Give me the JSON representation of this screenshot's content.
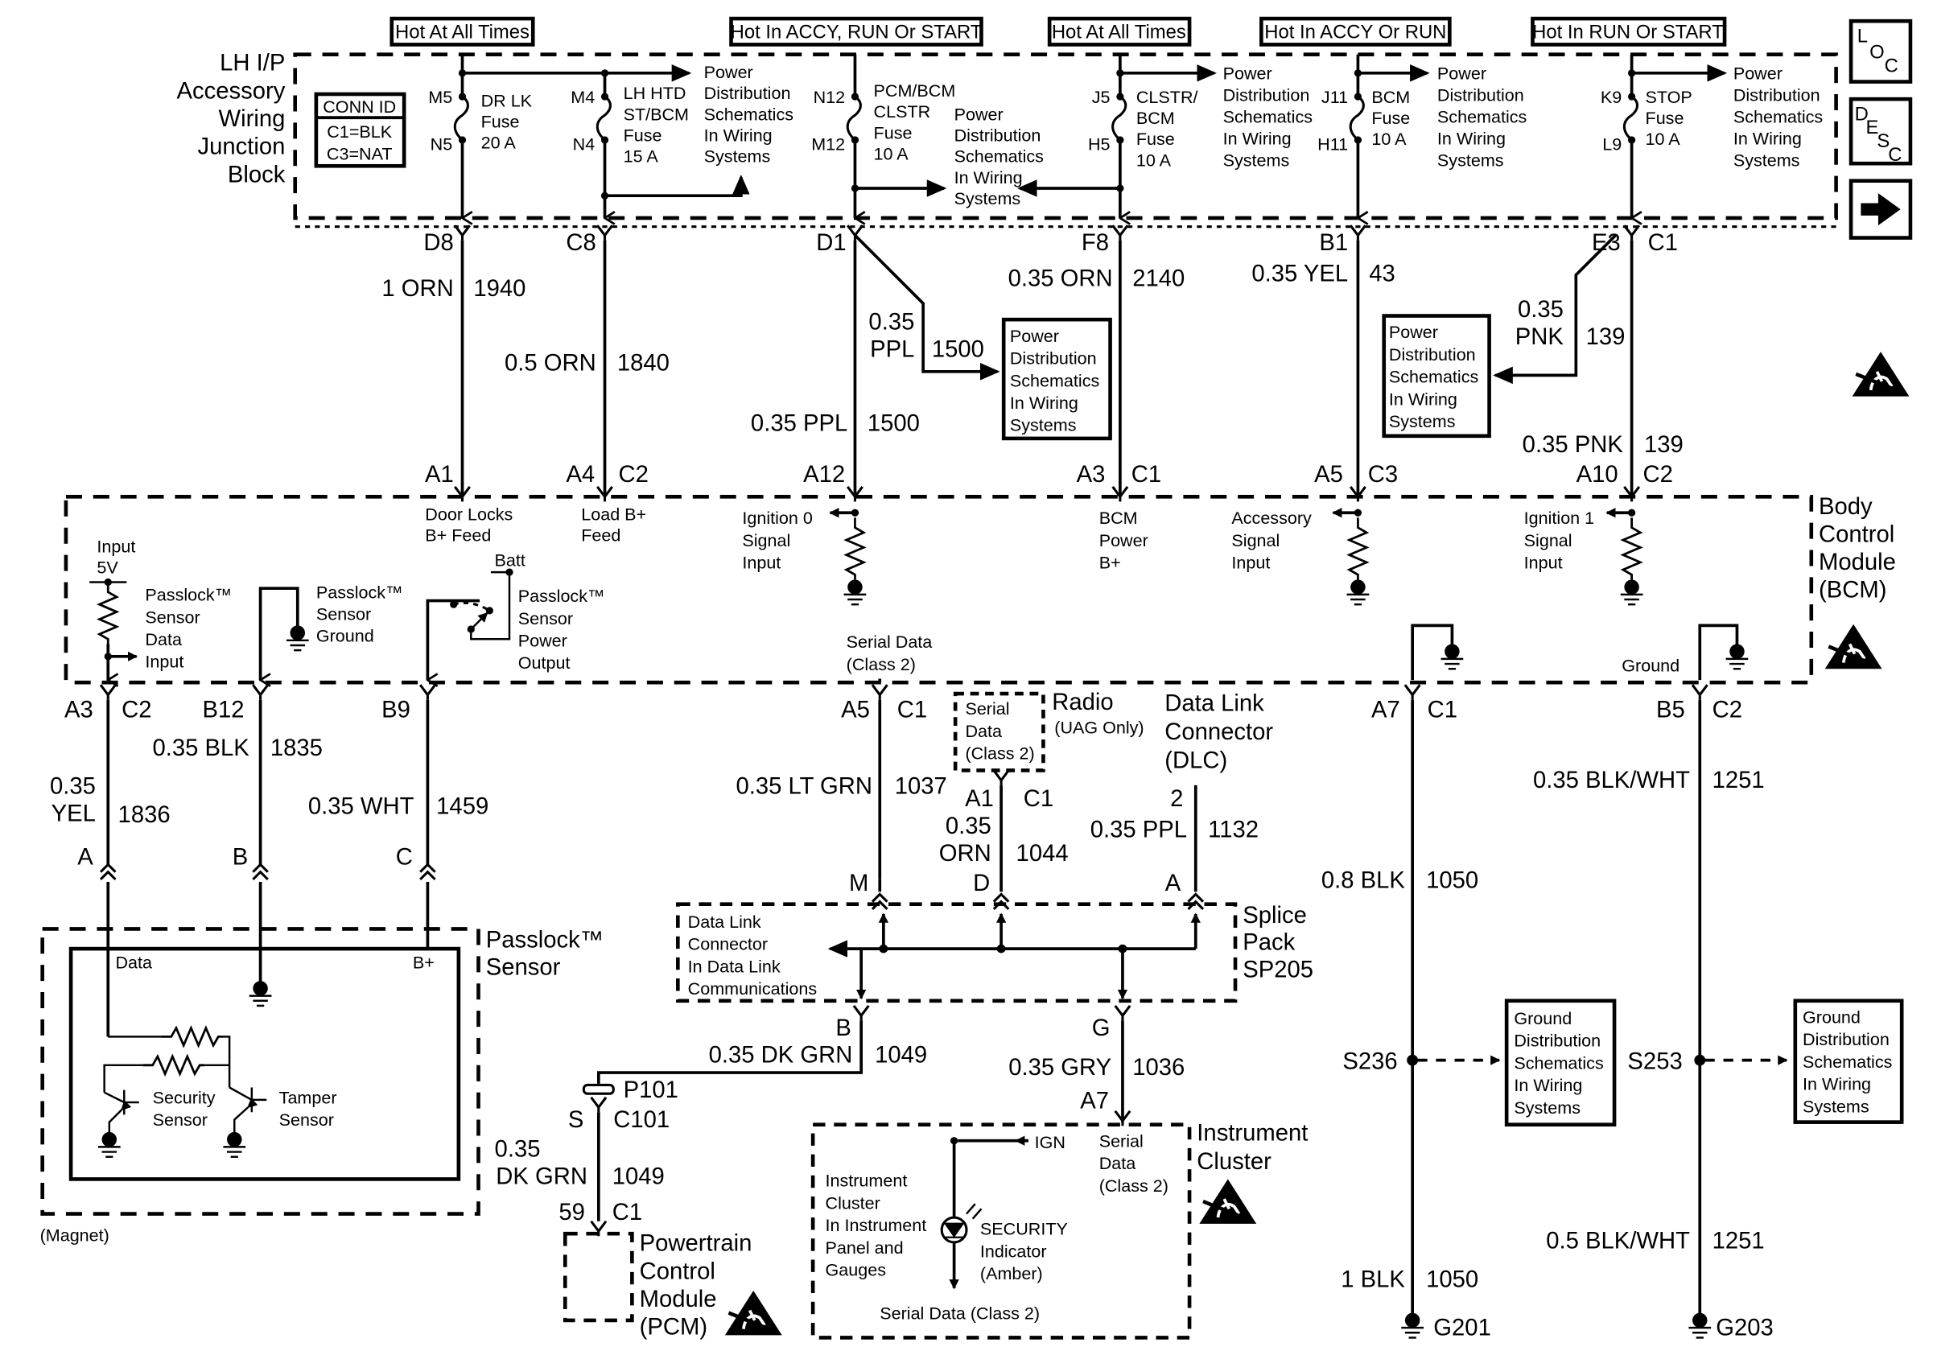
{
  "hot_labels": [
    "Hot At All Times",
    "Hot In ACCY, RUN Or START",
    "Hot At All Times",
    "Hot In ACCY Or RUN",
    "Hot In RUN Or START"
  ],
  "nav_icons": {
    "loc": [
      "L",
      "O",
      "C"
    ],
    "desc": [
      "D",
      "E",
      "S",
      "C"
    ],
    "next": "arrow-right-icon"
  },
  "power_ref": [
    "Power",
    "Distribution",
    "Schematics",
    "In Wiring",
    "Systems"
  ],
  "ground_ref": [
    "Ground",
    "Distribution",
    "Schematics",
    "In Wiring",
    "Systems"
  ],
  "junction_block": {
    "title": [
      "LH I/P",
      "Accessory",
      "Wiring",
      "Junction",
      "Block"
    ],
    "conn_id": {
      "header": "CONN ID",
      "c1": "C1=BLK",
      "c3": "C3=NAT"
    },
    "j11": "J11",
    "fuses": [
      {
        "in": "M5",
        "out": "N5",
        "name": [
          "DR LK",
          "Fuse",
          "20 A"
        ],
        "conn": "D8"
      },
      {
        "in": "M4",
        "out": "N4",
        "name": [
          "LH HTD",
          "ST/BCM",
          "Fuse",
          "15 A"
        ],
        "conn": "C8"
      },
      {
        "in": "N12",
        "out": "M12",
        "name": [
          "PCM/BCM",
          "CLSTR",
          "Fuse",
          "10 A"
        ],
        "conn": "D1"
      },
      {
        "in": "J5",
        "out": "H5",
        "name": [
          "CLSTR/",
          "BCM",
          "Fuse",
          "10 A"
        ],
        "conn": "F8"
      },
      {
        "in": "J11",
        "out": "H11",
        "name": [
          "BCM",
          "Fuse",
          "10 A"
        ],
        "conn": "B1"
      },
      {
        "in": "K9",
        "out": "L9",
        "name": [
          "STOP",
          "Fuse",
          "10 A"
        ],
        "conn": "E3",
        "conn2": "C1"
      }
    ]
  },
  "upper_wires": {
    "w1": {
      "gauge": "1 ORN",
      "circuit": "1940"
    },
    "w2": {
      "gauge": "0.5 ORN",
      "circuit": "1840"
    },
    "w3a": {
      "gauge": [
        "0.35",
        "PPL"
      ],
      "circuit": "1500"
    },
    "w3b": {
      "gauge": "0.35 PPL",
      "circuit": "1500"
    },
    "w4": {
      "gauge": "0.35 ORN",
      "circuit": "2140"
    },
    "w5": {
      "gauge": "0.35 YEL",
      "circuit": "43"
    },
    "w6a": {
      "gauge": [
        "0.35",
        "PNK"
      ],
      "circuit": "139"
    },
    "w6b": {
      "gauge": "0.35 PNK",
      "circuit": "139"
    }
  },
  "bcm": {
    "title": [
      "Body",
      "Control",
      "Module",
      "(BCM)"
    ],
    "top_pins": [
      {
        "pin": "A1"
      },
      {
        "pin": "A4",
        "conn": "C2"
      },
      {
        "pin": "A12"
      },
      {
        "pin": "A3",
        "conn": "C1"
      },
      {
        "pin": "A5",
        "conn": "C3"
      },
      {
        "pin": "A10",
        "conn": "C2"
      }
    ],
    "door_locks": [
      "Door Locks",
      "B+ Feed"
    ],
    "load": [
      "Load B+",
      "Feed"
    ],
    "ign0": [
      "Ignition 0",
      "Signal",
      "Input"
    ],
    "bcm_power": [
      "BCM",
      "Power",
      "B+"
    ],
    "accessory": [
      "Accessory",
      "Signal",
      "Input"
    ],
    "ign1": [
      "Ignition 1",
      "Signal",
      "Input"
    ],
    "input5v": [
      "Input",
      "5V"
    ],
    "pl_data": [
      "Passlock™",
      "Sensor",
      "Data",
      "Input"
    ],
    "pl_ground": [
      "Passlock™",
      "Sensor",
      "Ground"
    ],
    "batt": "Batt",
    "pl_power": [
      "Passlock™",
      "Sensor",
      "Power",
      "Output"
    ],
    "serial": [
      "Serial Data",
      "(Class 2)"
    ],
    "ground": "Ground",
    "bottom_pins": [
      {
        "pin": "A3",
        "conn": "C2"
      },
      {
        "pin": "B12"
      },
      {
        "pin": "B9"
      },
      {
        "pin": "A5",
        "conn": "C1"
      },
      {
        "pin": "A7",
        "conn": "C1"
      },
      {
        "pin": "B5",
        "conn": "C2"
      }
    ]
  },
  "lower_wires": {
    "yel": {
      "gauge": [
        "0.35",
        "YEL"
      ],
      "circuit": "1836"
    },
    "blk": {
      "gauge": "0.35 BLK",
      "circuit": "1835"
    },
    "wht": {
      "gauge": "0.35 WHT",
      "circuit": "1459"
    },
    "ltgrn": {
      "gauge": "0.35 LT GRN",
      "circuit": "1037"
    },
    "orn": {
      "gauge": [
        "0.35",
        "ORN"
      ],
      "circuit": "1044"
    },
    "ppl": {
      "gauge": "0.35 PPL",
      "circuit": "1132"
    },
    "dkgrn1": {
      "gauge": "0.35 DK GRN",
      "circuit": "1049"
    },
    "dkgrn2": {
      "gauge": [
        "0.35",
        "DK GRN"
      ],
      "circuit": "1049"
    },
    "gry": {
      "gauge": "0.35 GRY",
      "circuit": "1036"
    },
    "blk08": {
      "gauge": "0.8 BLK",
      "circuit": "1050"
    },
    "blk1": {
      "gauge": "1 BLK",
      "circuit": "1050"
    },
    "bw035": {
      "gauge": "0.35 BLK/WHT",
      "circuit": "1251"
    },
    "bw05": {
      "gauge": "0.5 BLK/WHT",
      "circuit": "1251"
    }
  },
  "passlock": {
    "title": [
      "Passlock™",
      "Sensor"
    ],
    "pins": [
      "A",
      "B",
      "C"
    ],
    "data": "Data",
    "bplus": "B+",
    "security": [
      "Security",
      "Sensor"
    ],
    "tamper": [
      "Tamper",
      "Sensor"
    ],
    "magnet": "(Magnet)"
  },
  "radio": {
    "title": "Radio",
    "note": "(UAG Only)",
    "serial": [
      "Serial",
      "Data",
      "(Class 2)"
    ],
    "pin": "A1",
    "conn": "C1"
  },
  "dlc": {
    "title": [
      "Data Link",
      "Connector",
      "(DLC)"
    ],
    "pin": "2"
  },
  "splice": {
    "title": [
      "Splice",
      "Pack",
      "SP205"
    ],
    "ref": [
      "Data Link",
      "Connector",
      "In Data Link",
      "Communications"
    ],
    "pins": {
      "m": "M",
      "d": "D",
      "a": "A",
      "b": "B",
      "g": "G"
    }
  },
  "p101": {
    "label": "P101",
    "s": "S",
    "c101": "C101"
  },
  "pcm": {
    "title": [
      "Powertrain",
      "Control",
      "Module",
      "(PCM)"
    ],
    "pin": "59",
    "conn": "C1"
  },
  "cluster": {
    "title": [
      "Instrument",
      "Cluster"
    ],
    "pin": "A7",
    "serial": [
      "Serial",
      "Data",
      "(Class 2)"
    ],
    "ign": "IGN",
    "ref": [
      "Instrument",
      "Cluster",
      "In Instrument",
      "Panel and",
      "Gauges"
    ],
    "indicator": [
      "SECURITY",
      "Indicator",
      "(Amber)"
    ],
    "serial_bottom": "Serial Data (Class 2)"
  },
  "grounds": {
    "s236": "S236",
    "s253": "S253",
    "g201": "G201",
    "g203": "G203"
  }
}
